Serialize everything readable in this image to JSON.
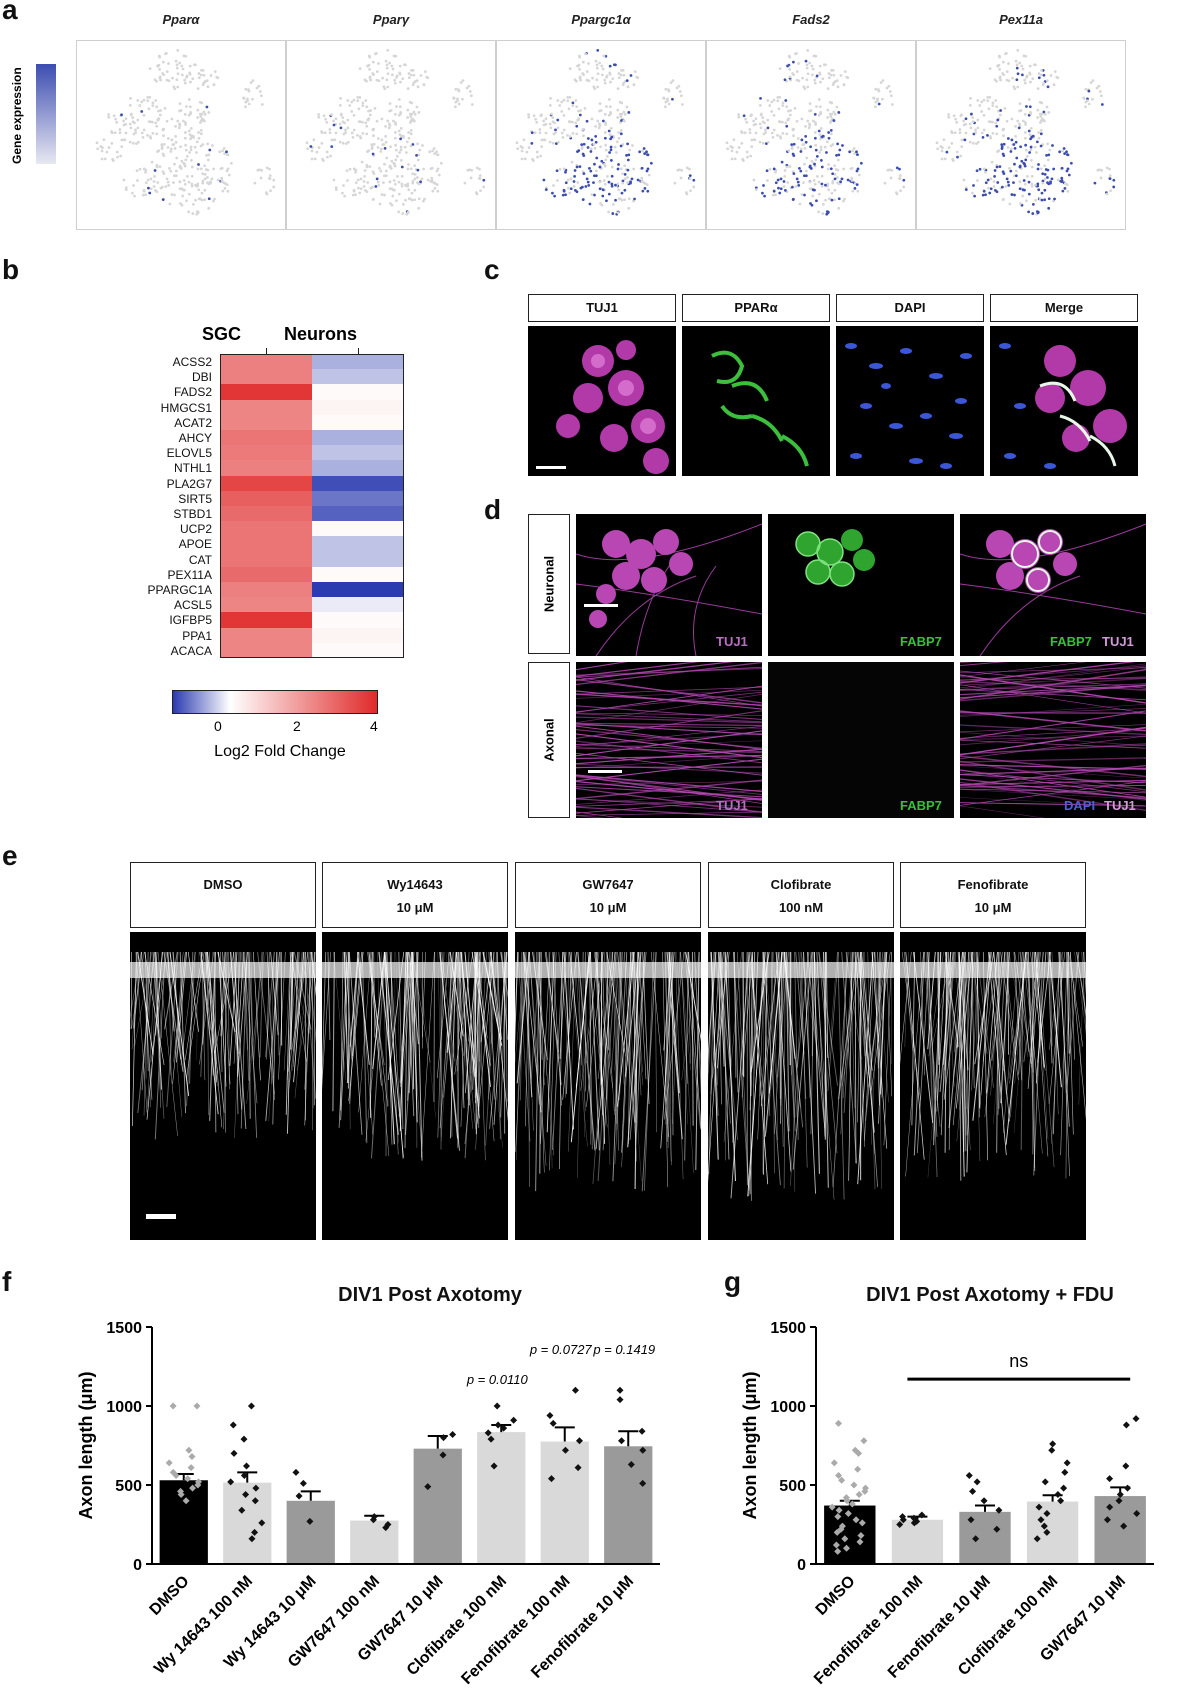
{
  "panel_labels": {
    "a": "a",
    "b": "b",
    "c": "c",
    "d": "d",
    "e": "e",
    "f": "f",
    "g": "g"
  },
  "panel_a": {
    "legend_label": "Gene expression",
    "plots": [
      {
        "gene": "Pparα",
        "level": 0.05
      },
      {
        "gene": "Pparγ",
        "level": 0.05
      },
      {
        "gene": "Ppargc1α",
        "level": 0.55
      },
      {
        "gene": "Fads2",
        "level": 0.45
      },
      {
        "gene": "Pex11a",
        "level": 0.65
      }
    ],
    "colors": {
      "low": "#d6d6d6",
      "high": "#3c4db0"
    }
  },
  "panel_b": {
    "columns": [
      "SGC",
      "Neurons"
    ],
    "genes": [
      "ACSS2",
      "DBI",
      "FADS2",
      "HMGCS1",
      "ACAT2",
      "AHCY",
      "ELOVL5",
      "NTHL1",
      "PLA2G7",
      "SIRT5",
      "STBD1",
      "UCP2",
      "APOE",
      "CAT",
      "PEX11A",
      "PPARGC1A",
      "ACSL5",
      "IGFBP5",
      "PPA1",
      "ACACA"
    ],
    "sgc_values": [
      2.4,
      2.4,
      3.8,
      2.3,
      2.3,
      2.6,
      2.5,
      2.4,
      3.5,
      3.0,
      2.8,
      2.6,
      2.6,
      2.6,
      2.8,
      2.4,
      2.3,
      3.8,
      2.3,
      2.3
    ],
    "neuron_values": [
      -0.4,
      -0.3,
      0.1,
      0.2,
      0.1,
      -0.4,
      -0.3,
      -0.4,
      -0.9,
      -0.7,
      -0.8,
      0.1,
      -0.3,
      -0.3,
      0.1,
      -1.0,
      -0.1,
      0.1,
      0.2,
      0.1
    ],
    "colorbar_ticks": [
      "0",
      "2",
      "4"
    ],
    "colorbar_label": "Log2 Fold Change",
    "colors": {
      "neg": "#2b3bb0",
      "mid": "#ffffff",
      "pos": "#e02a2a"
    }
  },
  "panel_c": {
    "headers": [
      "TUJ1",
      "PPARα",
      "DAPI",
      "Merge"
    ]
  },
  "panel_d": {
    "rows": [
      "Neuronal",
      "Axonal"
    ],
    "neuronal_labels": [
      "TUJ1",
      "FABP7",
      "FABP7",
      "TUJ1"
    ],
    "axonal_labels": [
      "TUJ1",
      "FABP7",
      "DAPI",
      "TUJ1"
    ]
  },
  "panel_e": {
    "headers": [
      {
        "name": "DMSO",
        "dose": ""
      },
      {
        "name": "Wy14643",
        "dose": "10 μM"
      },
      {
        "name": "GW7647",
        "dose": "10 μM"
      },
      {
        "name": "Clofibrate",
        "dose": "100 nM"
      },
      {
        "name": "Fenofibrate",
        "dose": "10 μM"
      }
    ]
  },
  "chart_data": [
    {
      "type": "bar",
      "title": "DIV1 Post Axotomy",
      "ylabel": "Axon length (μm)",
      "ylim": [
        0,
        1500
      ],
      "yticks": [
        0,
        500,
        1000,
        1500
      ],
      "categories": [
        "DMSO",
        "Wy 14643 100 nM",
        "Wy 14643 10 μM",
        "GW7647 100 nM",
        "GW7647 10 μM",
        "Clofibrate 100 nM",
        "Fenofibrate 100 nM",
        "Fenofibrate 10 μM"
      ],
      "values": [
        530,
        515,
        400,
        275,
        730,
        835,
        775,
        745
      ],
      "errors": [
        40,
        65,
        60,
        30,
        80,
        45,
        90,
        95
      ],
      "bar_colors": [
        "#000000",
        "#d9d9d9",
        "#9a9a9a",
        "#d9d9d9",
        "#9a9a9a",
        "#d9d9d9",
        "#d9d9d9",
        "#9a9a9a"
      ],
      "points": [
        [
          1000,
          1000,
          720,
          680,
          640,
          610,
          580,
          560,
          540,
          520,
          500,
          480,
          460,
          440,
          400
        ],
        [
          1000,
          880,
          790,
          700,
          620,
          560,
          520,
          480,
          440,
          400,
          340,
          260,
          200,
          160
        ],
        [
          580,
          510,
          430,
          270
        ],
        [
          300,
          280,
          250,
          230
        ],
        [
          820,
          800,
          690,
          490
        ],
        [
          1000,
          910,
          880,
          860,
          830,
          790,
          620
        ],
        [
          1100,
          940,
          890,
          780,
          720,
          610,
          540
        ],
        [
          1100,
          1040,
          840,
          780,
          720,
          630,
          510
        ]
      ],
      "annotations": [
        {
          "category": "Clofibrate 100 nM",
          "text": "p = 0.0110"
        },
        {
          "category": "Fenofibrate 100 nM",
          "text": "p = 0.0727"
        },
        {
          "category": "Fenofibrate 10 μM",
          "text": "p = 0.1419"
        }
      ]
    },
    {
      "type": "bar",
      "title": "DIV1 Post Axotomy + FDU",
      "ylabel": "Axon length (μm)",
      "ylim": [
        0,
        1500
      ],
      "yticks": [
        0,
        500,
        1000,
        1500
      ],
      "categories": [
        "DMSO",
        "Fenofibrate 100 nM",
        "Fenofibrate 10 μM",
        "Clofibrate 100 nM",
        "GW7647 10 μM"
      ],
      "values": [
        370,
        280,
        330,
        395,
        430
      ],
      "errors": [
        30,
        20,
        40,
        40,
        55
      ],
      "bar_colors": [
        "#000000",
        "#d9d9d9",
        "#9a9a9a",
        "#d9d9d9",
        "#9a9a9a"
      ],
      "points": [
        [
          890,
          780,
          720,
          700,
          640,
          600,
          560,
          530,
          500,
          480,
          460,
          440,
          420,
          400,
          380,
          360,
          340,
          320,
          300,
          280,
          260,
          240,
          220,
          200,
          180,
          160,
          140,
          120,
          100,
          80
        ],
        [
          310,
          300,
          290,
          280,
          270,
          260,
          250
        ],
        [
          560,
          520,
          460,
          400,
          340,
          280,
          220,
          160
        ],
        [
          760,
          720,
          640,
          580,
          520,
          480,
          440,
          400,
          360,
          320,
          280,
          240,
          200,
          160
        ],
        [
          920,
          880,
          620,
          540,
          480,
          440,
          400,
          360,
          320,
          280,
          240
        ]
      ],
      "significance": {
        "text": "ns",
        "from": "Fenofibrate 100 nM",
        "to": "GW7647 10 μM"
      }
    }
  ]
}
